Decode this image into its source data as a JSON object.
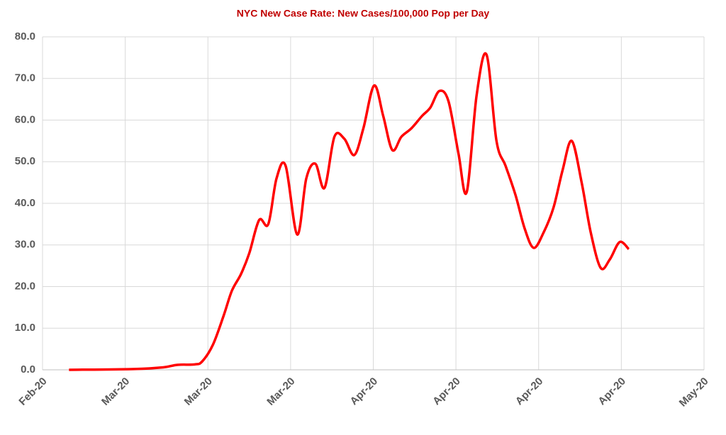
{
  "chart_data": {
    "type": "line",
    "title": "NYC New Case Rate: New Cases/100,000 Pop per Day",
    "x": [
      0.32,
      1.11,
      1.46,
      1.63,
      1.84,
      1.93,
      2.06,
      2.19,
      2.29,
      2.4,
      2.5,
      2.62,
      2.73,
      2.83,
      2.94,
      3.08,
      3.19,
      3.3,
      3.41,
      3.53,
      3.65,
      3.77,
      3.88,
      4.01,
      4.12,
      4.23,
      4.34,
      4.46,
      4.59,
      4.69,
      4.8,
      4.91,
      5.03,
      5.13,
      5.25,
      5.37,
      5.49,
      5.6,
      5.72,
      5.83,
      5.94,
      6.06,
      6.18,
      6.29,
      6.4,
      6.52,
      6.63,
      6.75,
      6.86,
      6.98,
      7.09
    ],
    "series": [
      {
        "color": "#ff0000",
        "values": [
          0,
          0.2,
          0.6,
          1.2,
          1.3,
          2,
          6,
          13,
          19,
          23,
          28,
          36,
          35,
          46,
          49,
          32.5,
          46,
          49.5,
          43.7,
          56,
          55.5,
          51.6,
          58,
          68.3,
          61,
          52.8,
          56,
          58,
          61,
          63,
          67,
          64.5,
          52,
          42.7,
          66,
          75.7,
          55,
          49,
          42,
          34,
          29.3,
          33,
          39,
          48,
          55,
          45,
          33,
          24.5,
          26.5,
          30.7,
          29
        ]
      }
    ],
    "xlim": [
      0,
      8
    ],
    "xticks": [
      {
        "value": 0,
        "label": "Feb-20"
      },
      {
        "value": 1,
        "label": "Mar-20"
      },
      {
        "value": 2,
        "label": "Mar-20"
      },
      {
        "value": 3,
        "label": "Mar-20"
      },
      {
        "value": 4,
        "label": "Apr-20"
      },
      {
        "value": 5,
        "label": "Apr-20"
      },
      {
        "value": 6,
        "label": "Apr-20"
      },
      {
        "value": 7,
        "label": "Apr-20"
      },
      {
        "value": 8,
        "label": "May-20"
      }
    ],
    "ylim": [
      0,
      80
    ],
    "yticks": [
      {
        "value": 0,
        "label": "0.0"
      },
      {
        "value": 10,
        "label": "10.0"
      },
      {
        "value": 20,
        "label": "20.0"
      },
      {
        "value": 30,
        "label": "30.0"
      },
      {
        "value": 40,
        "label": "40.0"
      },
      {
        "value": 50,
        "label": "50.0"
      },
      {
        "value": 60,
        "label": "60.0"
      },
      {
        "value": 70,
        "label": "70.0"
      },
      {
        "value": 80,
        "label": "80.0"
      }
    ],
    "grid": true
  }
}
